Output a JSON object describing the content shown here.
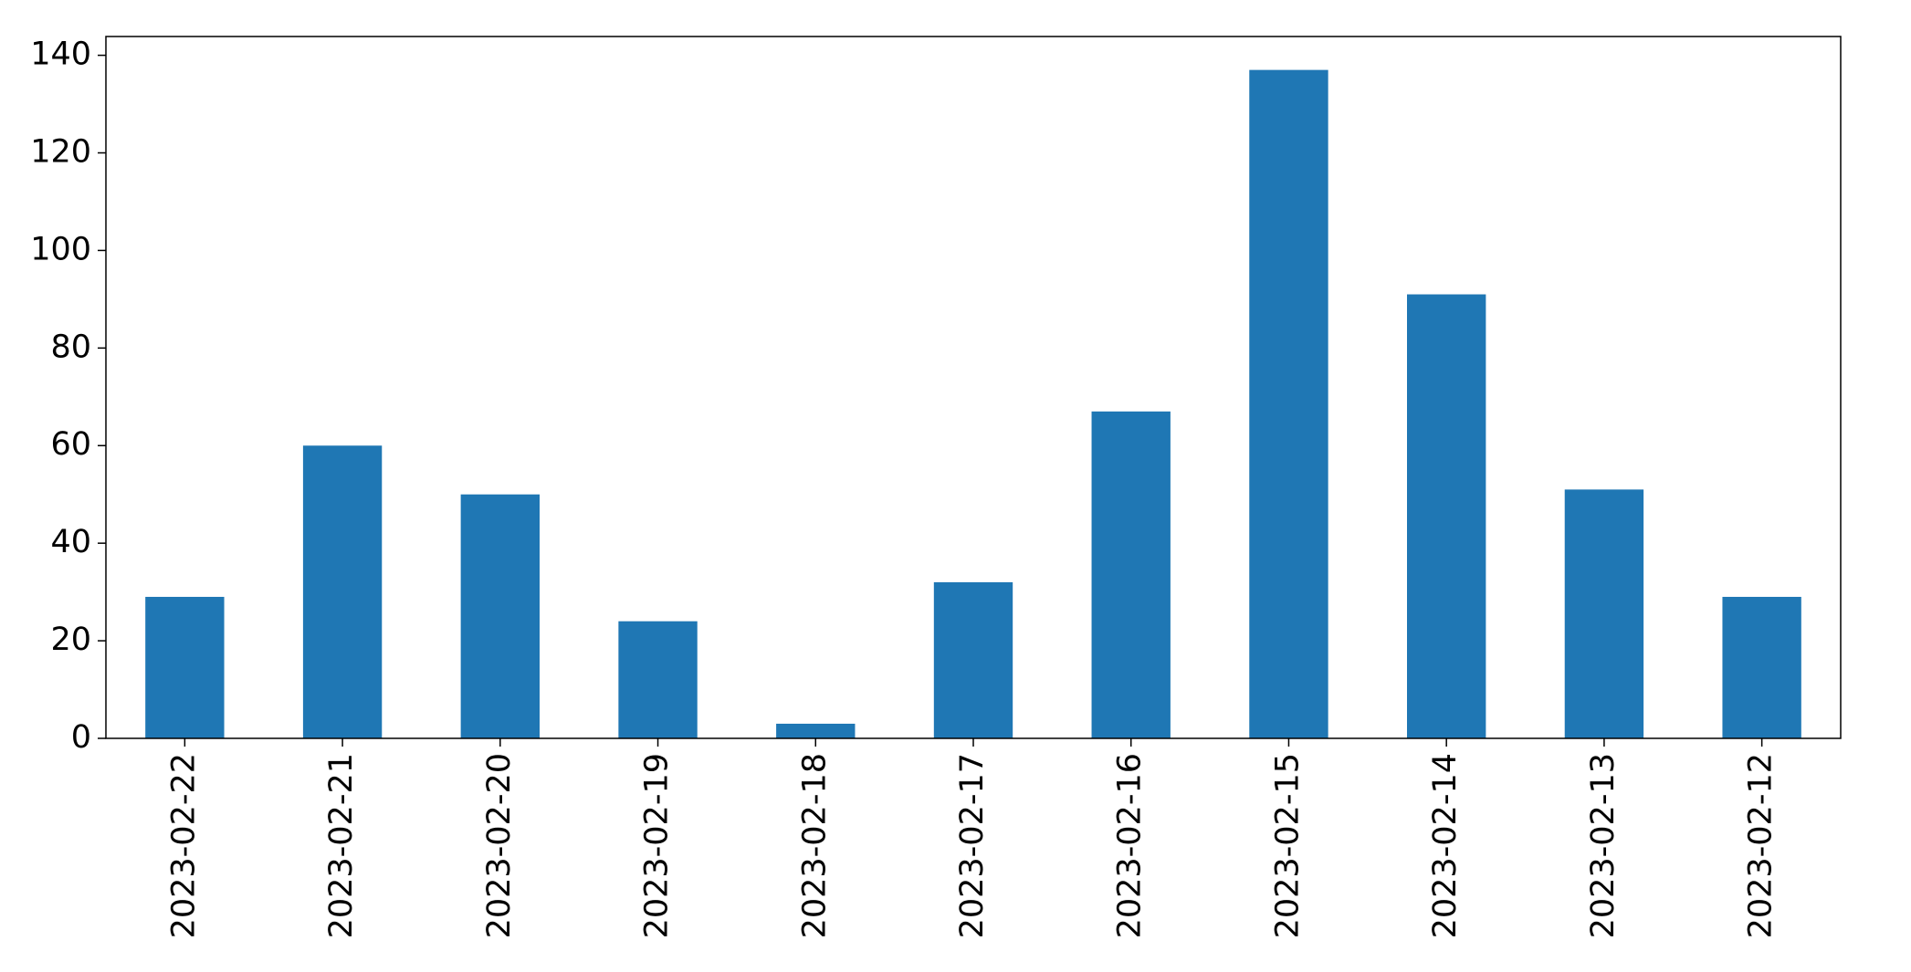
{
  "chart_data": {
    "type": "bar",
    "categories": [
      "2023-02-22",
      "2023-02-21",
      "2023-02-20",
      "2023-02-19",
      "2023-02-18",
      "2023-02-17",
      "2023-02-16",
      "2023-02-15",
      "2023-02-14",
      "2023-02-13",
      "2023-02-12"
    ],
    "values": [
      29,
      60,
      50,
      24,
      3,
      32,
      67,
      137,
      91,
      51,
      29
    ],
    "color": "#1f77b4",
    "ylim": [
      0,
      143.85
    ],
    "yticks": [
      0,
      20,
      40,
      60,
      80,
      100,
      120,
      140
    ],
    "grid": false
  }
}
